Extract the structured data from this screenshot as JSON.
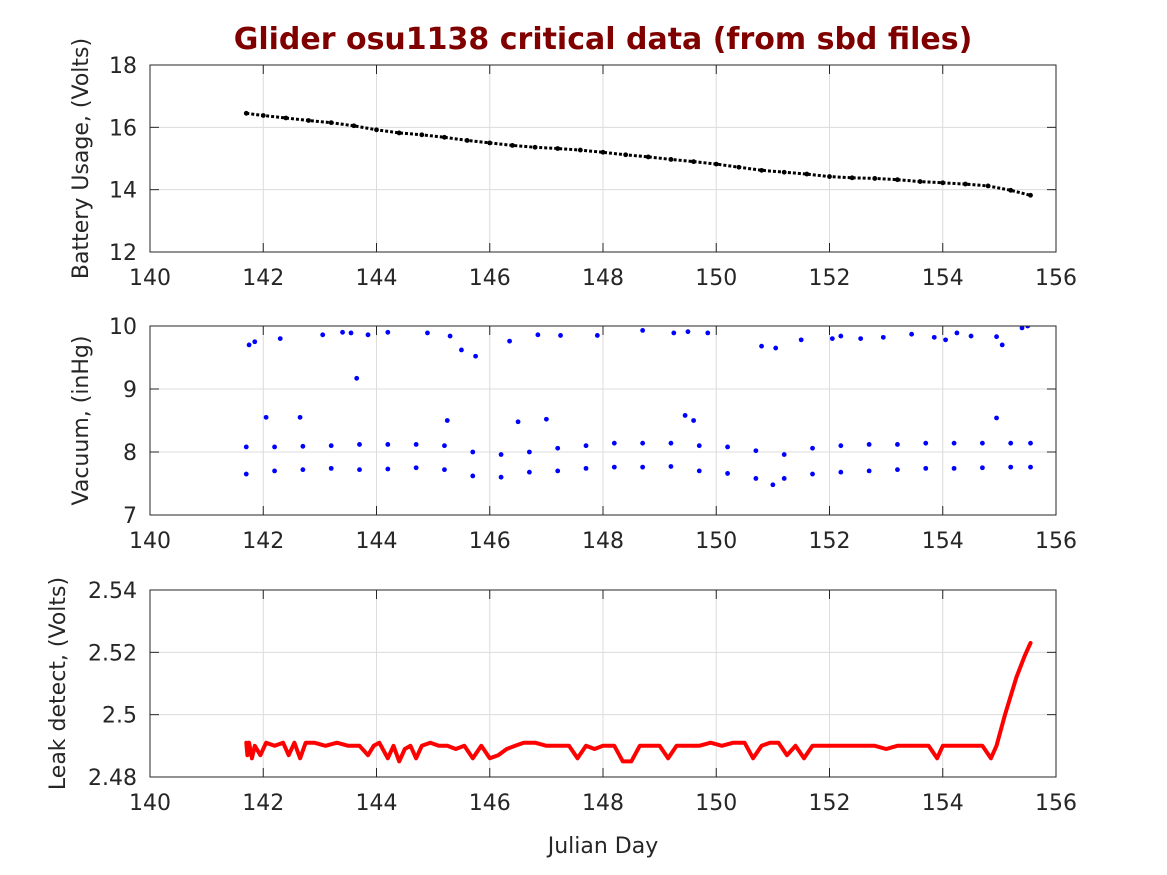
{
  "figure": {
    "title": "Glider osu1138 critical data (from sbd files)",
    "title_color": "#800000",
    "xlabel": "Julian Day"
  },
  "chart_data": [
    {
      "type": "scatter",
      "title": "",
      "xlabel": "",
      "ylabel": "Battery Usage, (Volts)",
      "xlim": [
        140,
        156
      ],
      "ylim": [
        12,
        18
      ],
      "xticks": [
        140,
        142,
        144,
        146,
        148,
        150,
        152,
        154,
        156
      ],
      "yticks": [
        12,
        14,
        16,
        18
      ],
      "grid": true,
      "color": "#000000",
      "series": [
        {
          "x": [
            141.7,
            142.0,
            142.4,
            142.8,
            143.2,
            143.6,
            144.0,
            144.4,
            144.8,
            145.2,
            145.6,
            146.0,
            146.4,
            146.8,
            147.2,
            147.6,
            148.0,
            148.4,
            148.8,
            149.2,
            149.6,
            150.0,
            150.4,
            150.8,
            151.2,
            151.6,
            152.0,
            152.4,
            152.8,
            153.2,
            153.6,
            154.0,
            154.4,
            154.8,
            155.2,
            155.55
          ],
          "y": [
            16.45,
            16.38,
            16.3,
            16.22,
            16.15,
            16.05,
            15.92,
            15.82,
            15.76,
            15.68,
            15.58,
            15.5,
            15.42,
            15.36,
            15.32,
            15.27,
            15.2,
            15.12,
            15.05,
            14.97,
            14.9,
            14.82,
            14.72,
            14.62,
            14.56,
            14.5,
            14.42,
            14.38,
            14.36,
            14.32,
            14.26,
            14.22,
            14.18,
            14.12,
            13.98,
            13.82
          ]
        }
      ]
    },
    {
      "type": "scatter",
      "title": "",
      "xlabel": "",
      "ylabel": "Vacuum, (inHg)",
      "xlim": [
        140,
        156
      ],
      "ylim": [
        7,
        10
      ],
      "xticks": [
        140,
        142,
        144,
        146,
        148,
        150,
        152,
        154,
        156
      ],
      "yticks": [
        7,
        8,
        9,
        10
      ],
      "grid": true,
      "color": "#0000ff",
      "series": [
        {
          "x": [
            141.7,
            142.2,
            142.7,
            143.2,
            143.7,
            144.2,
            144.7,
            145.2,
            145.7,
            146.2,
            146.7,
            147.2,
            147.7,
            148.2,
            148.7,
            149.2,
            149.7,
            150.2,
            150.7,
            151.0,
            151.2,
            151.7,
            152.2,
            152.7,
            153.2,
            153.7,
            154.2,
            154.7,
            155.2,
            155.55
          ],
          "y": [
            7.65,
            7.7,
            7.72,
            7.74,
            7.72,
            7.73,
            7.75,
            7.72,
            7.62,
            7.6,
            7.68,
            7.7,
            7.74,
            7.76,
            7.76,
            7.77,
            7.7,
            7.66,
            7.58,
            7.48,
            7.58,
            7.65,
            7.68,
            7.7,
            7.72,
            7.74,
            7.74,
            7.75,
            7.76,
            7.76
          ]
        },
        {
          "x": [
            141.7,
            142.2,
            142.7,
            143.2,
            143.7,
            144.2,
            144.7,
            145.2,
            145.7,
            146.2,
            146.7,
            147.2,
            147.7,
            148.2,
            148.7,
            149.2,
            149.7,
            150.2,
            150.7,
            151.2,
            151.7,
            152.2,
            152.7,
            153.2,
            153.7,
            154.2,
            154.7,
            155.2,
            155.55
          ],
          "y": [
            8.08,
            8.08,
            8.09,
            8.1,
            8.12,
            8.12,
            8.12,
            8.1,
            8.0,
            7.96,
            8.0,
            8.06,
            8.1,
            8.14,
            8.14,
            8.14,
            8.1,
            8.08,
            8.02,
            7.96,
            8.06,
            8.1,
            8.12,
            8.12,
            8.14,
            8.14,
            8.14,
            8.14,
            8.14
          ]
        },
        {
          "x": [
            141.75,
            141.85,
            142.3,
            143.05,
            143.4,
            143.55,
            143.85,
            144.2,
            144.9,
            145.3,
            145.5,
            145.75,
            146.35,
            146.85,
            147.25,
            147.9,
            148.7,
            149.25,
            149.5,
            149.85,
            150.8,
            151.05,
            151.5,
            152.05,
            152.2,
            152.55,
            152.95,
            153.45,
            153.85,
            154.05,
            154.25,
            154.5,
            154.95,
            155.05,
            155.4,
            155.5,
            143.65,
            142.05,
            142.65,
            145.25,
            146.5,
            147.0,
            149.45,
            149.6,
            154.95
          ],
          "y": [
            9.7,
            9.75,
            9.8,
            9.86,
            9.9,
            9.89,
            9.86,
            9.9,
            9.89,
            9.84,
            9.62,
            9.52,
            9.76,
            9.86,
            9.85,
            9.85,
            9.93,
            9.89,
            9.91,
            9.89,
            9.68,
            9.65,
            9.78,
            9.8,
            9.84,
            9.8,
            9.82,
            9.87,
            9.82,
            9.78,
            9.89,
            9.84,
            9.83,
            9.7,
            9.97,
            10.0,
            9.17,
            8.55,
            8.55,
            8.5,
            8.48,
            8.52,
            8.58,
            8.5,
            8.54
          ]
        }
      ]
    },
    {
      "type": "line",
      "title": "",
      "xlabel": "Julian Day",
      "ylabel": "Leak detect, (Volts)",
      "xlim": [
        140,
        156
      ],
      "ylim": [
        2.48,
        2.54
      ],
      "xticks": [
        140,
        142,
        144,
        146,
        148,
        150,
        152,
        154,
        156
      ],
      "yticks": [
        2.48,
        2.5,
        2.52,
        2.54
      ],
      "grid": true,
      "color": "#ff0000",
      "series": [
        {
          "x": [
            141.7,
            141.72,
            141.75,
            141.8,
            141.85,
            141.95,
            142.05,
            142.2,
            142.35,
            142.45,
            142.55,
            142.65,
            142.75,
            142.9,
            143.1,
            143.3,
            143.5,
            143.7,
            143.85,
            143.95,
            144.05,
            144.2,
            144.3,
            144.4,
            144.5,
            144.6,
            144.7,
            144.8,
            144.95,
            145.1,
            145.25,
            145.4,
            145.55,
            145.7,
            145.85,
            146.0,
            146.15,
            146.3,
            146.45,
            146.6,
            146.8,
            147.0,
            147.2,
            147.4,
            147.55,
            147.7,
            147.85,
            148.0,
            148.2,
            148.35,
            148.5,
            148.65,
            148.8,
            149.0,
            149.15,
            149.3,
            149.5,
            149.7,
            149.9,
            150.1,
            150.3,
            150.5,
            150.65,
            150.8,
            150.95,
            151.1,
            151.25,
            151.4,
            151.55,
            151.7,
            151.85,
            152.0,
            152.2,
            152.4,
            152.6,
            152.8,
            153.0,
            153.2,
            153.4,
            153.6,
            153.75,
            153.9,
            154.0,
            154.1,
            154.25,
            154.4,
            154.55,
            154.7,
            154.85,
            154.95,
            155.1,
            155.3,
            155.45,
            155.55
          ],
          "y": [
            2.491,
            2.487,
            2.491,
            2.486,
            2.49,
            2.487,
            2.491,
            2.49,
            2.491,
            2.487,
            2.491,
            2.486,
            2.491,
            2.491,
            2.49,
            2.491,
            2.49,
            2.49,
            2.487,
            2.49,
            2.491,
            2.486,
            2.49,
            2.485,
            2.489,
            2.49,
            2.486,
            2.49,
            2.491,
            2.49,
            2.49,
            2.489,
            2.49,
            2.486,
            2.49,
            2.486,
            2.487,
            2.489,
            2.49,
            2.491,
            2.491,
            2.49,
            2.49,
            2.49,
            2.486,
            2.49,
            2.489,
            2.49,
            2.49,
            2.485,
            2.485,
            2.49,
            2.49,
            2.49,
            2.486,
            2.49,
            2.49,
            2.49,
            2.491,
            2.49,
            2.491,
            2.491,
            2.486,
            2.49,
            2.491,
            2.491,
            2.487,
            2.49,
            2.486,
            2.49,
            2.49,
            2.49,
            2.49,
            2.49,
            2.49,
            2.49,
            2.489,
            2.49,
            2.49,
            2.49,
            2.49,
            2.486,
            2.49,
            2.49,
            2.49,
            2.49,
            2.49,
            2.49,
            2.486,
            2.49,
            2.5,
            2.512,
            2.519,
            2.523
          ]
        }
      ]
    }
  ]
}
